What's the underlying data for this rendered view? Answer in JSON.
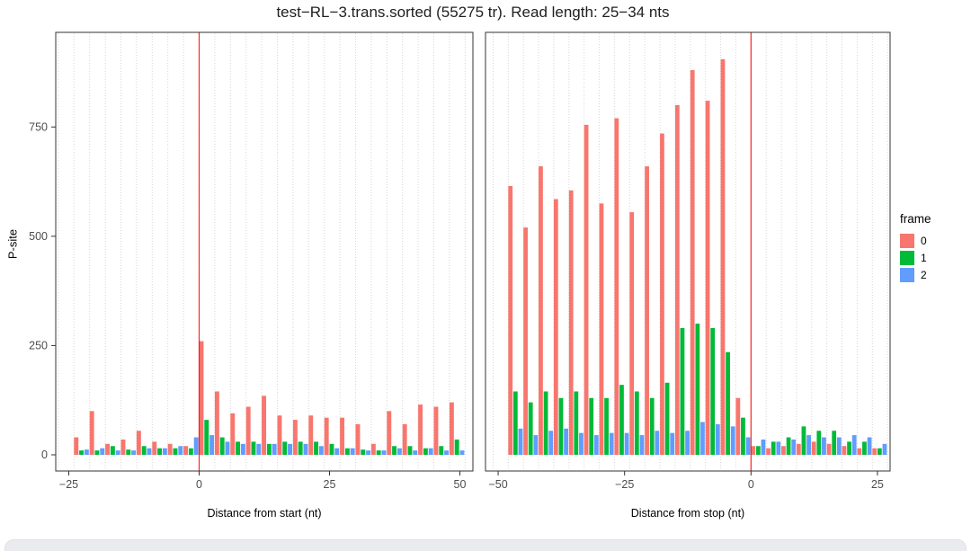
{
  "chart_data": {
    "type": "bar",
    "title": "test−RL−3.trans.sorted (55275 tr). Read length: 25−34 nts",
    "ylabel": "P-site",
    "ylim": [
      0,
      950
    ],
    "yticks": [
      0,
      250,
      500,
      750
    ],
    "ytick_labels": [
      "0",
      "250",
      "500",
      "750"
    ],
    "grid": "dotted-vertical",
    "legend": {
      "title": "frame",
      "position": "right",
      "entries": [
        {
          "label": "0",
          "color": "#F8766D"
        },
        {
          "label": "1",
          "color": "#00BA38"
        },
        {
          "label": "2",
          "color": "#619CFF"
        }
      ]
    },
    "panels": [
      {
        "xlabel": "Distance from start (nt)",
        "xlim": [
          -27.5,
          52.5
        ],
        "xticks": [
          -25,
          0,
          25,
          50
        ],
        "xtick_labels": [
          "−25",
          "0",
          "25",
          "50"
        ],
        "vline_x": 0,
        "vline_color": "#ff0000",
        "x": [
          -24,
          -21,
          -18,
          -15,
          -12,
          -9,
          -6,
          -3,
          0,
          3,
          6,
          9,
          12,
          15,
          18,
          21,
          24,
          27,
          30,
          33,
          36,
          39,
          42,
          45,
          48
        ],
        "series": [
          {
            "name": "0",
            "color": "#F8766D",
            "values": [
              40,
              100,
              25,
              35,
              55,
              30,
              25,
              20,
              260,
              145,
              95,
              110,
              135,
              90,
              80,
              90,
              85,
              85,
              70,
              25,
              100,
              70,
              115,
              110,
              120
            ]
          },
          {
            "name": "1",
            "color": "#00BA38",
            "values": [
              10,
              10,
              20,
              12,
              20,
              15,
              15,
              15,
              80,
              40,
              30,
              30,
              25,
              30,
              30,
              30,
              25,
              15,
              12,
              10,
              20,
              20,
              15,
              20,
              35
            ]
          },
          {
            "name": "2",
            "color": "#619CFF",
            "values": [
              12,
              15,
              10,
              10,
              15,
              15,
              20,
              40,
              45,
              30,
              25,
              25,
              25,
              25,
              25,
              20,
              15,
              15,
              10,
              10,
              15,
              10,
              15,
              10,
              10
            ]
          }
        ]
      },
      {
        "xlabel": "Distance from stop (nt)",
        "xlim": [
          -52.5,
          27.5
        ],
        "xticks": [
          -50,
          -25,
          0,
          25
        ],
        "xtick_labels": [
          "−50",
          "−25",
          "0",
          "25"
        ],
        "vline_x": 0,
        "vline_color": "#ff0000",
        "x": [
          -48,
          -45,
          -42,
          -39,
          -36,
          -33,
          -30,
          -27,
          -24,
          -21,
          -18,
          -15,
          -12,
          -9,
          -6,
          -3,
          0,
          3,
          6,
          9,
          12,
          15,
          18,
          21,
          24
        ],
        "series": [
          {
            "name": "0",
            "color": "#F8766D",
            "values": [
              615,
              520,
              660,
              585,
              605,
              755,
              575,
              770,
              555,
              660,
              735,
              800,
              880,
              810,
              905,
              130,
              20,
              15,
              20,
              25,
              30,
              25,
              20,
              15,
              15
            ]
          },
          {
            "name": "1",
            "color": "#00BA38",
            "values": [
              145,
              120,
              145,
              130,
              145,
              130,
              130,
              160,
              145,
              130,
              165,
              290,
              300,
              290,
              235,
              85,
              20,
              30,
              40,
              65,
              55,
              55,
              30,
              30,
              15
            ]
          },
          {
            "name": "2",
            "color": "#619CFF",
            "values": [
              60,
              45,
              55,
              60,
              50,
              45,
              50,
              50,
              45,
              55,
              50,
              55,
              75,
              70,
              65,
              40,
              35,
              30,
              35,
              45,
              40,
              40,
              45,
              40,
              25
            ]
          }
        ]
      }
    ]
  }
}
